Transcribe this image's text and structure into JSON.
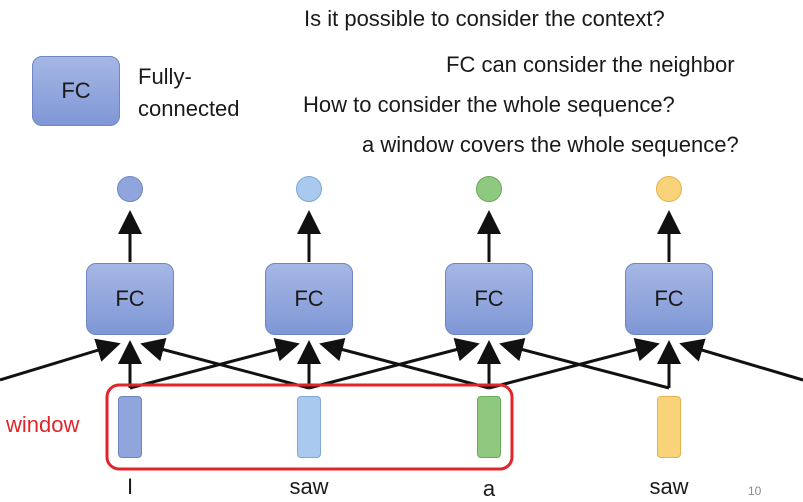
{
  "legend": {
    "box_label": "FC",
    "desc_line1": "Fully-",
    "desc_line2": "connected"
  },
  "notes": [
    "Is it possible to consider the context?",
    "FC can consider the neighbor",
    "How to consider the whole sequence?",
    "a window covers the whole sequence?"
  ],
  "fc_label": "FC",
  "window_label": "window",
  "words": [
    "I",
    "saw",
    "a",
    "saw"
  ],
  "page_number": "10",
  "colors": {
    "blue": "#8fa5dc",
    "light_blue": "#a9c9ee",
    "green": "#8fc97f",
    "yellow": "#f9d37a",
    "window": "#e0262b"
  }
}
